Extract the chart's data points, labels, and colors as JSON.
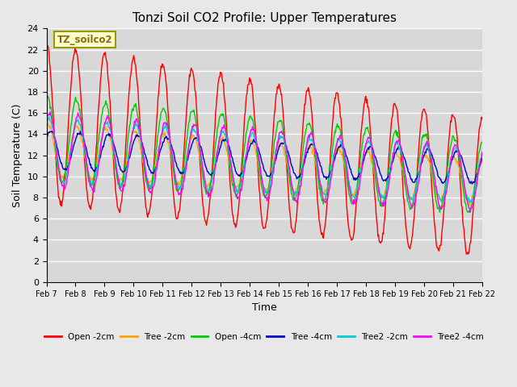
{
  "title": "Tonzi Soil CO2 Profile: Upper Temperatures",
  "xlabel": "Time",
  "ylabel": "Soil Temperature (C)",
  "ylim": [
    0,
    24
  ],
  "annotation_text": "TZ_soilco2",
  "annotation_color": "#8B6914",
  "annotation_bg": "#FFFFCC",
  "annotation_edge": "#999900",
  "fig_bg": "#E8E8E8",
  "plot_bg": "#D8D8D8",
  "grid_color": "#FFFFFF",
  "series": [
    {
      "label": "Open -2cm",
      "color": "#FF0000"
    },
    {
      "label": "Tree -2cm",
      "color": "#FFA500"
    },
    {
      "label": "Open -4cm",
      "color": "#00CC00"
    },
    {
      "label": "Tree -4cm",
      "color": "#0000CC"
    },
    {
      "label": "Tree2 -2cm",
      "color": "#00CCCC"
    },
    {
      "label": "Tree2 -4cm",
      "color": "#FF00FF"
    }
  ],
  "n_days": 15,
  "points_per_day": 48,
  "tick_labels": [
    "Feb 7",
    "Feb 8",
    "Feb 9",
    "Feb 10",
    "Feb 11",
    "Feb 12",
    "Feb 13",
    "Feb 14",
    "Feb 15",
    "Feb 16",
    "Feb 17",
    "Feb 18",
    "Feb 19",
    "Feb 20",
    "Feb 21",
    "Feb 22"
  ],
  "yticks": [
    0,
    2,
    4,
    6,
    8,
    10,
    12,
    14,
    16,
    18,
    20,
    22,
    24
  ]
}
